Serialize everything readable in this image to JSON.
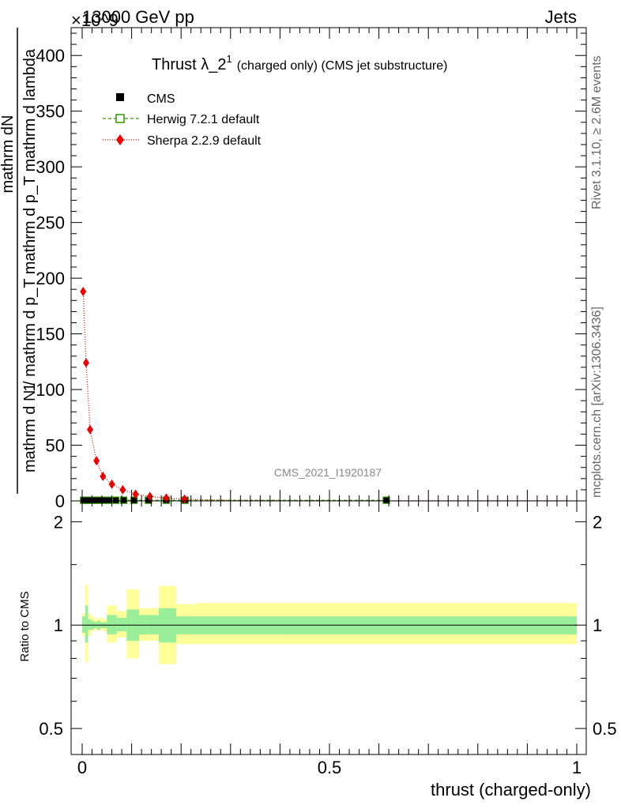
{
  "header": {
    "left": "13000 GeV pp",
    "right": "Jets",
    "exponent": "×10^9"
  },
  "side_text": {
    "top": "Rivet 3.1.10, ≥ 2.6M events",
    "bottom": "mcplots.cern.ch [arXiv:1306.3436]"
  },
  "watermark": "CMS_2021_I1920187",
  "chart_data": [
    {
      "type": "line",
      "title": "Thrust λ_2^1 (charged only) (CMS jet substructure)",
      "title_main": "Thrust λ_2",
      "title_sup": "1",
      "title_rest": "(charged only) (CMS jet substructure)",
      "ylabel_num": "mathrm dN",
      "ylabel_den1": "mathrm d N / mathrm d p",
      "ylabel_den2": "T",
      "ylabel_den3": "mathrm d p",
      "ylabel_den4": "T",
      "ylabel_den5": "mathrm d lambda",
      "ylabel_one": "1",
      "ylabel_den_full": "mathrm d N / mathrm d p_T mathrm d p_T mathrm d lambda",
      "xlim": [
        0,
        1
      ],
      "ylim": [
        0,
        425
      ],
      "yticks": [
        0,
        50,
        100,
        150,
        200,
        250,
        300,
        350,
        400
      ],
      "legend_position": "top-left",
      "series": [
        {
          "name": "CMS",
          "color": "#000000",
          "marker": "square",
          "x": [
            0.003,
            0.009,
            0.015,
            0.021,
            0.028,
            0.036,
            0.045,
            0.055,
            0.068,
            0.084,
            0.105,
            0.134,
            0.17,
            0.208,
            0.615
          ],
          "y": [
            0.6,
            0.6,
            0.6,
            0.6,
            0.6,
            0.6,
            0.6,
            0.6,
            0.6,
            0.6,
            0.6,
            0.6,
            0.6,
            0.6,
            0.6
          ]
        },
        {
          "name": "Herwig 7.2.1 default",
          "color": "#339900",
          "marker": "open-square",
          "x": [
            0.003,
            0.009,
            0.015,
            0.021,
            0.028,
            0.036,
            0.045,
            0.055,
            0.068,
            0.084,
            0.105,
            0.134,
            0.17,
            0.208,
            0.615
          ],
          "y": [
            0.6,
            0.6,
            0.6,
            0.6,
            0.6,
            0.6,
            0.6,
            0.6,
            0.6,
            0.6,
            0.6,
            0.6,
            0.6,
            0.6,
            0.6
          ]
        },
        {
          "name": "Sherpa 2.2.9 default",
          "color": "#ee0000",
          "marker": "diamond",
          "x": [
            0.002,
            0.008,
            0.016,
            0.029,
            0.042,
            0.06,
            0.082,
            0.108,
            0.137,
            0.17,
            0.207,
            0.25,
            0.3,
            0.36,
            0.43,
            0.5,
            0.6,
            0.7,
            0.8,
            0.9,
            0.99
          ],
          "y": [
            188,
            124,
            64,
            36,
            22,
            15,
            10,
            6,
            4,
            2.5,
            1.6,
            1.0,
            0.6,
            0.4,
            0.3,
            0.2,
            0.1,
            0.1,
            0.05,
            0.05,
            0.05
          ]
        }
      ]
    },
    {
      "type": "area",
      "ylabel": "Ratio to CMS",
      "xlabel": "thrust (charged-only)",
      "xlim": [
        -0.02,
        1.02
      ],
      "ylim": [
        0.42,
        2.3
      ],
      "log_y": true,
      "yticks": [
        0.5,
        1,
        2
      ],
      "xticks": [
        0,
        0.5,
        1
      ],
      "reference_line": 1,
      "bands": {
        "edges": [
          0.0,
          0.006,
          0.012,
          0.018,
          0.024,
          0.03,
          0.036,
          0.042,
          0.05,
          0.06,
          0.07,
          0.08,
          0.09,
          0.1,
          0.115,
          0.13,
          0.155,
          0.19,
          0.23,
          0.4,
          1.0
        ],
        "stat_low": [
          0.95,
          0.89,
          0.97,
          0.97,
          0.98,
          0.97,
          0.98,
          0.98,
          0.94,
          0.94,
          0.96,
          0.96,
          0.9,
          0.9,
          0.94,
          0.94,
          0.89,
          0.94,
          0.94,
          0.94
        ],
        "stat_high": [
          1.06,
          1.14,
          1.04,
          1.03,
          1.02,
          1.03,
          1.02,
          1.02,
          1.07,
          1.07,
          1.05,
          1.05,
          1.11,
          1.11,
          1.07,
          1.07,
          1.12,
          1.06,
          1.06,
          1.06
        ],
        "sys_low": [
          0.93,
          0.78,
          0.93,
          0.96,
          0.97,
          0.96,
          0.97,
          0.96,
          0.89,
          0.89,
          0.92,
          0.92,
          0.8,
          0.8,
          0.9,
          0.9,
          0.77,
          0.88,
          0.88,
          0.88
        ],
        "sys_high": [
          1.08,
          1.31,
          1.08,
          1.06,
          1.04,
          1.05,
          1.05,
          1.04,
          1.14,
          1.14,
          1.1,
          1.1,
          1.27,
          1.27,
          1.12,
          1.12,
          1.3,
          1.15,
          1.16,
          1.16
        ]
      },
      "colors": {
        "stat": "#99ee99",
        "sys": "#ffff99"
      }
    }
  ]
}
